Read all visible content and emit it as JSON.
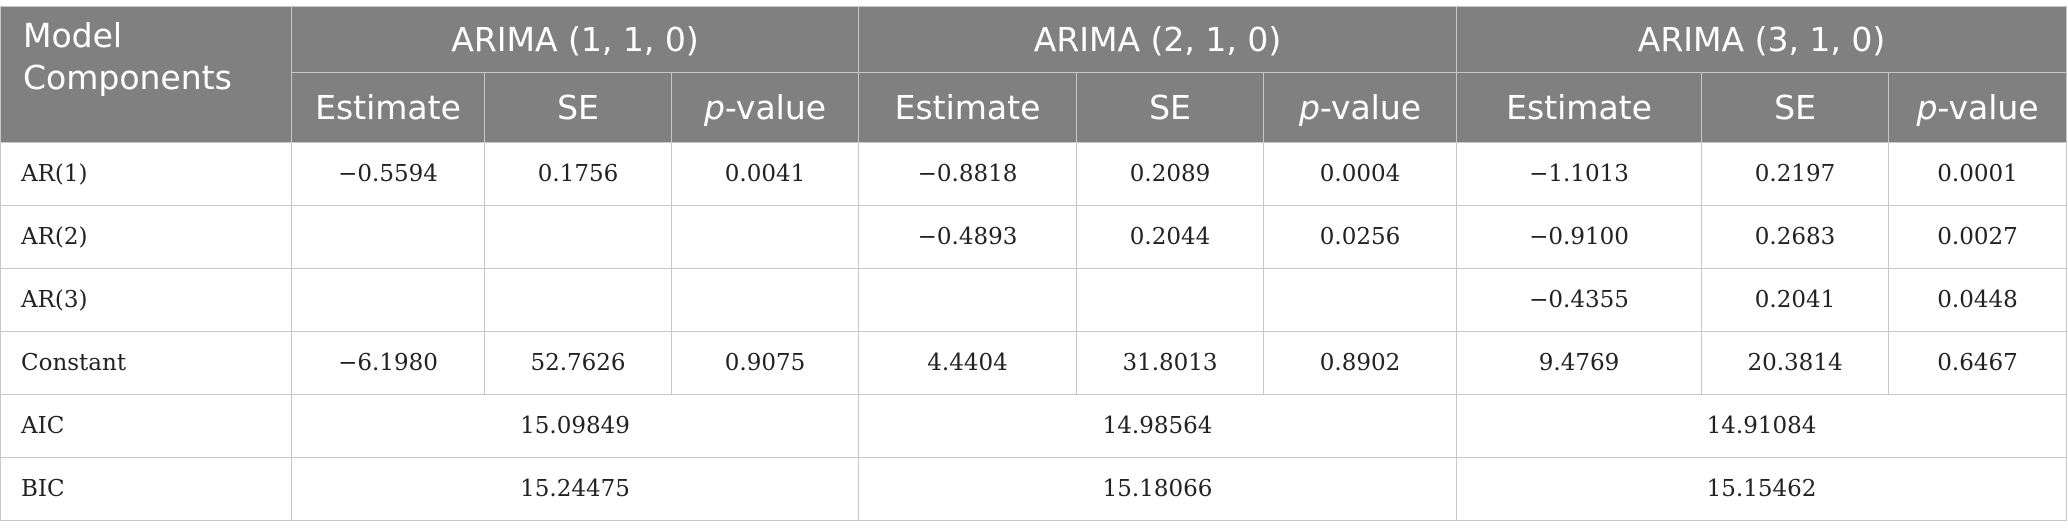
{
  "header": {
    "model_components": "Model Components",
    "groups": [
      "ARIMA (1, 1, 0)",
      "ARIMA (2, 1, 0)",
      "ARIMA (3, 1, 0)"
    ],
    "sub": {
      "estimate": "Estimate",
      "se": "SE",
      "p_prefix": "p",
      "p_suffix": "-value"
    }
  },
  "rows": [
    {
      "label": "AR(1)",
      "cells": [
        "−0.5594",
        "0.1756",
        "0.0041",
        "−0.8818",
        "0.2089",
        "0.0004",
        "−1.1013",
        "0.2197",
        "0.0001"
      ]
    },
    {
      "label": "AR(2)",
      "cells": [
        "",
        "",
        "",
        "−0.4893",
        "0.2044",
        "0.0256",
        "−0.9100",
        "0.2683",
        "0.0027"
      ]
    },
    {
      "label": "AR(3)",
      "cells": [
        "",
        "",
        "",
        "",
        "",
        "",
        "−0.4355",
        "0.2041",
        "0.0448"
      ]
    },
    {
      "label": "Constant",
      "cells": [
        "−6.1980",
        "52.7626",
        "0.9075",
        "4.4404",
        "31.8013",
        "0.8902",
        "9.4769",
        "20.3814",
        "0.6467"
      ]
    }
  ],
  "summary": [
    {
      "label": "AIC",
      "values": [
        "15.09849",
        "14.98564",
        "14.91084"
      ]
    },
    {
      "label": "BIC",
      "values": [
        "15.24475",
        "15.18066",
        "15.15462"
      ]
    }
  ]
}
